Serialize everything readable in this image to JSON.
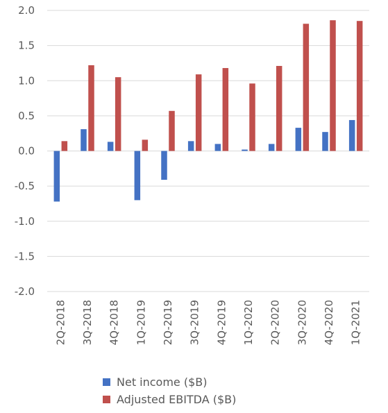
{
  "chart_data": {
    "type": "bar",
    "title": "",
    "xlabel": "",
    "ylabel": "",
    "ylim": [
      -2.0,
      2.0
    ],
    "yticks": [
      "2.0",
      "1.5",
      "1.0",
      "0.5",
      "0.0",
      "-0.5",
      "-1.0",
      "-1.5",
      "-2.0"
    ],
    "categories": [
      "2Q-2018",
      "3Q-2018",
      "4Q-2018",
      "1Q-2019",
      "2Q-2019",
      "3Q-2019",
      "4Q-2019",
      "1Q-2020",
      "2Q-2020",
      "3Q-2020",
      "4Q-2020",
      "1Q-2021"
    ],
    "series": [
      {
        "name": "Net income ($B)",
        "color": "#4472C4",
        "values": [
          -0.72,
          0.31,
          0.13,
          -0.7,
          -0.41,
          0.14,
          0.1,
          0.02,
          0.1,
          0.33,
          0.27,
          0.44
        ]
      },
      {
        "name": "Adjusted EBITDA ($B)",
        "color": "#C0504D",
        "values": [
          0.14,
          1.22,
          1.05,
          0.16,
          0.57,
          1.09,
          1.18,
          0.96,
          1.21,
          1.81,
          1.86,
          1.85
        ]
      }
    ],
    "grid": true,
    "legend_position": "bottom-left"
  }
}
